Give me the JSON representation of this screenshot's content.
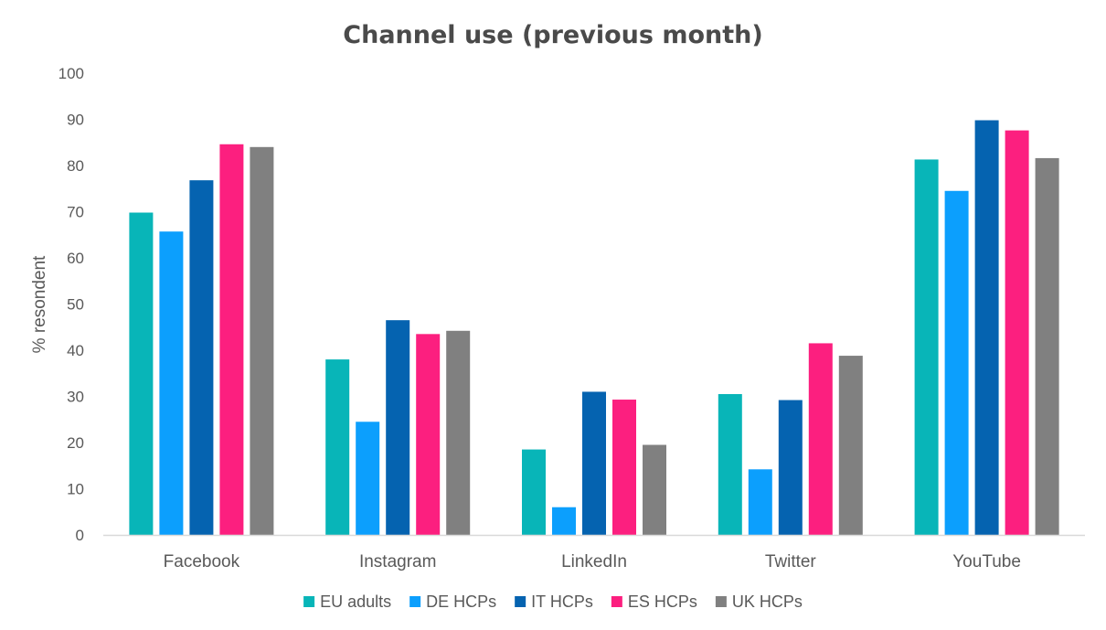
{
  "chart_data": {
    "type": "bar",
    "title": "Channel use (previous month)",
    "xlabel": "",
    "ylabel": "% resondent",
    "ylim": [
      0,
      100
    ],
    "yticks": [
      0,
      10,
      20,
      30,
      40,
      50,
      60,
      70,
      80,
      90,
      100
    ],
    "categories": [
      "Facebook",
      "Instagram",
      "LinkedIn",
      "Twitter",
      "YouTube"
    ],
    "series": [
      {
        "name": "EU adults",
        "color": "#08b5b8",
        "values": [
          69.8,
          38.0,
          18.5,
          30.5,
          81.3
        ]
      },
      {
        "name": "DE HCPs",
        "color": "#0c9ffd",
        "values": [
          65.7,
          24.5,
          6.0,
          14.2,
          74.5
        ]
      },
      {
        "name": "IT HCPs",
        "color": "#0563b0",
        "values": [
          76.8,
          46.5,
          31.0,
          29.2,
          89.8
        ]
      },
      {
        "name": "ES HCPs",
        "color": "#fc1f7f",
        "values": [
          84.6,
          43.5,
          29.3,
          41.5,
          87.6
        ]
      },
      {
        "name": "UK HCPs",
        "color": "#808080",
        "values": [
          84.0,
          44.2,
          19.5,
          38.8,
          81.6
        ]
      }
    ],
    "grid": false,
    "legend": "bottom",
    "axis_color": "#d9d9d9"
  }
}
